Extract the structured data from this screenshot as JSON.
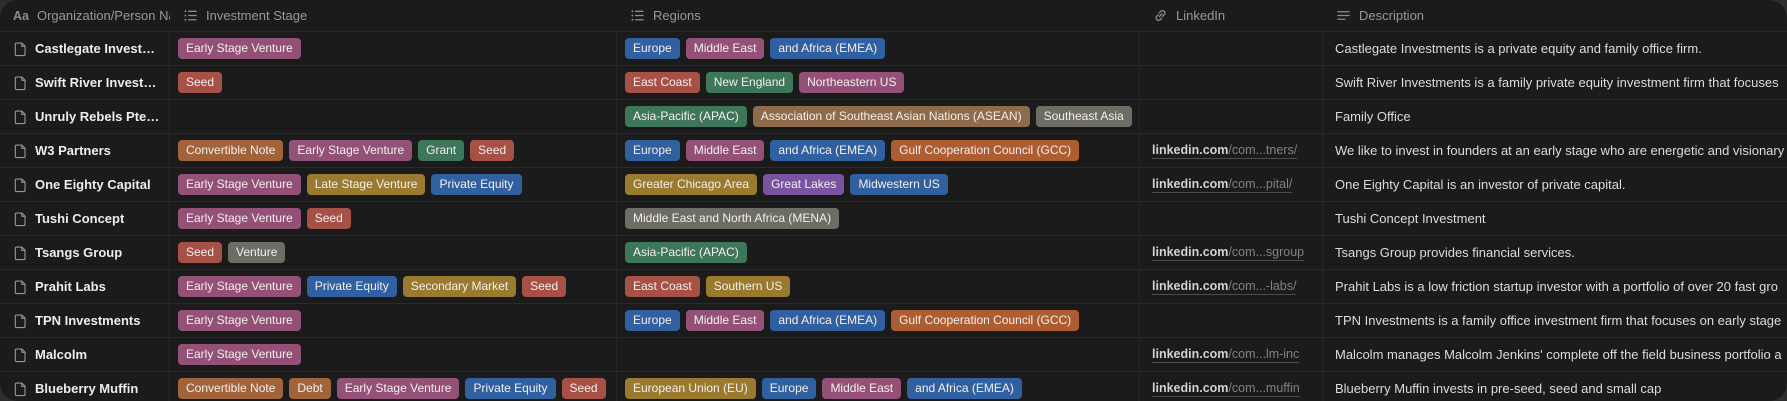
{
  "palette": {
    "pink": "#935177",
    "red": "#a65046",
    "green": "#3e7659",
    "blue": "#30609f",
    "gold": "#997a2e",
    "purple": "#7a54a1",
    "gray": "#6d6d66",
    "orange_brown": "#a0633a",
    "brown": "#8e6b4b",
    "orange": "#ae5c31"
  },
  "table": {
    "columns": [
      {
        "label": "Organization/Person Na...",
        "icon": "text-field-icon"
      },
      {
        "label": "Investment Stage",
        "icon": "multi-select-icon"
      },
      {
        "label": "Regions",
        "icon": "multi-select-icon"
      },
      {
        "label": "LinkedIn",
        "icon": "link-icon"
      },
      {
        "label": "Description",
        "icon": "description-icon"
      }
    ],
    "rows": [
      {
        "name": "Castlegate Investments",
        "stages": [
          {
            "label": "Early Stage Venture",
            "color": "pink"
          }
        ],
        "regions": [
          {
            "label": "Europe",
            "color": "blue"
          },
          {
            "label": "Middle East",
            "color": "pink"
          },
          {
            "label": "and Africa (EMEA)",
            "color": "blue"
          }
        ],
        "linkedin": null,
        "description": "Castlegate Investments is a private equity and family office firm."
      },
      {
        "name": "Swift River Investments",
        "stages": [
          {
            "label": "Seed",
            "color": "red"
          }
        ],
        "regions": [
          {
            "label": "East Coast",
            "color": "red"
          },
          {
            "label": "New England",
            "color": "green"
          },
          {
            "label": "Northeastern US",
            "color": "pink"
          }
        ],
        "linkedin": null,
        "description": "Swift River Investments is a family private equity investment firm that focuses"
      },
      {
        "name": "Unruly Rebels Pte Ltd",
        "stages": [],
        "regions": [
          {
            "label": "Asia-Pacific (APAC)",
            "color": "green"
          },
          {
            "label": "Association of Southeast Asian Nations (ASEAN)",
            "color": "brown"
          },
          {
            "label": "Southeast Asia",
            "color": "gray"
          }
        ],
        "linkedin": null,
        "description": "Family Office"
      },
      {
        "name": "W3 Partners",
        "stages": [
          {
            "label": "Convertible Note",
            "color": "orange_brown"
          },
          {
            "label": "Early Stage Venture",
            "color": "pink"
          },
          {
            "label": "Grant",
            "color": "green"
          },
          {
            "label": "Seed",
            "color": "red"
          }
        ],
        "regions": [
          {
            "label": "Europe",
            "color": "blue"
          },
          {
            "label": "Middle East",
            "color": "pink"
          },
          {
            "label": "and Africa (EMEA)",
            "color": "blue"
          },
          {
            "label": "Gulf Cooperation Council (GCC)",
            "color": "orange"
          }
        ],
        "linkedin": {
          "prefix": "linkedin.com",
          "suffix": "/com...tners/"
        },
        "description": "We like to invest in founders at an early stage who are energetic and visionary"
      },
      {
        "name": "One Eighty Capital",
        "stages": [
          {
            "label": "Early Stage Venture",
            "color": "pink"
          },
          {
            "label": "Late Stage Venture",
            "color": "gold"
          },
          {
            "label": "Private Equity",
            "color": "blue"
          }
        ],
        "regions": [
          {
            "label": "Greater Chicago Area",
            "color": "gold"
          },
          {
            "label": "Great Lakes",
            "color": "purple"
          },
          {
            "label": "Midwestern US",
            "color": "blue"
          }
        ],
        "linkedin": {
          "prefix": "linkedin.com",
          "suffix": "/com...pital/"
        },
        "description": "One Eighty Capital is an investor of private capital."
      },
      {
        "name": "Tushi Concept",
        "stages": [
          {
            "label": "Early Stage Venture",
            "color": "pink"
          },
          {
            "label": "Seed",
            "color": "red"
          }
        ],
        "regions": [
          {
            "label": "Middle East and North Africa (MENA)",
            "color": "gray"
          }
        ],
        "linkedin": null,
        "description": "Tushi Concept Investment"
      },
      {
        "name": "Tsangs Group",
        "stages": [
          {
            "label": "Seed",
            "color": "red"
          },
          {
            "label": "Venture",
            "color": "gray"
          }
        ],
        "regions": [
          {
            "label": "Asia-Pacific (APAC)",
            "color": "green"
          }
        ],
        "linkedin": {
          "prefix": "linkedin.com",
          "suffix": "/com...sgroup"
        },
        "description": "Tsangs Group provides financial services."
      },
      {
        "name": "Prahit Labs",
        "stages": [
          {
            "label": "Early Stage Venture",
            "color": "pink"
          },
          {
            "label": "Private Equity",
            "color": "blue"
          },
          {
            "label": "Secondary Market",
            "color": "gold"
          },
          {
            "label": "Seed",
            "color": "red"
          }
        ],
        "regions": [
          {
            "label": "East Coast",
            "color": "red"
          },
          {
            "label": "Southern US",
            "color": "gold"
          }
        ],
        "linkedin": {
          "prefix": "linkedin.com",
          "suffix": "/com...-labs/"
        },
        "description": "Prahit Labs is a low friction startup investor with a portfolio of over 20 fast gro"
      },
      {
        "name": "TPN Investments",
        "stages": [
          {
            "label": "Early Stage Venture",
            "color": "pink"
          }
        ],
        "regions": [
          {
            "label": "Europe",
            "color": "blue"
          },
          {
            "label": "Middle East",
            "color": "pink"
          },
          {
            "label": "and Africa (EMEA)",
            "color": "blue"
          },
          {
            "label": "Gulf Cooperation Council (GCC)",
            "color": "orange"
          }
        ],
        "linkedin": null,
        "description": "TPN Investments is a family office investment firm that focuses on early stage"
      },
      {
        "name": "Malcolm",
        "stages": [
          {
            "label": "Early Stage Venture",
            "color": "pink"
          }
        ],
        "regions": [],
        "linkedin": {
          "prefix": "linkedin.com",
          "suffix": "/com...lm-inc"
        },
        "description": "Malcolm manages Malcolm Jenkins' complete off the field business portfolio a"
      },
      {
        "name": "Blueberry Muffin",
        "stages": [
          {
            "label": "Convertible Note",
            "color": "orange_brown"
          },
          {
            "label": "Debt",
            "color": "orange_brown"
          },
          {
            "label": "Early Stage Venture",
            "color": "pink"
          },
          {
            "label": "Private Equity",
            "color": "blue"
          },
          {
            "label": "Seed",
            "color": "red"
          }
        ],
        "regions": [
          {
            "label": "European Union (EU)",
            "color": "gold"
          },
          {
            "label": "Europe",
            "color": "blue"
          },
          {
            "label": "Middle East",
            "color": "pink"
          },
          {
            "label": "and Africa (EMEA)",
            "color": "blue"
          }
        ],
        "linkedin": {
          "prefix": "linkedin.com",
          "suffix": "/com...muffin"
        },
        "description": "Blueberry Muffin invests in pre-seed, seed and small cap"
      }
    ]
  }
}
